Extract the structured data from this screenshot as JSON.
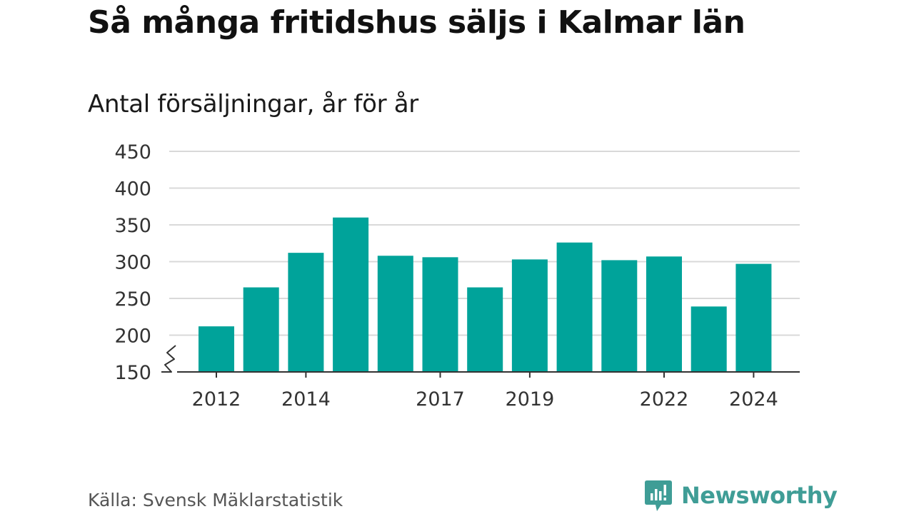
{
  "title": "Så många fritidshus säljs i Kalmar län",
  "subtitle": "Antal försäljningar, år för år",
  "source": "Källa: Svensk Mäklarstatistik",
  "brand": "Newsworthy",
  "colors": {
    "bar": "#00a39a",
    "grid": "#d9d9d9",
    "axis": "#333333",
    "brand": "#3f9d96"
  },
  "chart_data": {
    "type": "bar",
    "categories": [
      "2012",
      "2013",
      "2014",
      "2015",
      "2016",
      "2017",
      "2018",
      "2019",
      "2020",
      "2021",
      "2022",
      "2023",
      "2024"
    ],
    "values": [
      212,
      265,
      312,
      360,
      308,
      306,
      265,
      303,
      326,
      302,
      307,
      239,
      297
    ],
    "x_tick_labels": [
      "2012",
      "2014",
      "2017",
      "2019",
      "2022",
      "2024"
    ],
    "y_ticks": [
      150,
      200,
      250,
      300,
      350,
      400,
      450
    ],
    "ylim": [
      150,
      450
    ],
    "y_axis_break": true,
    "grid": true,
    "xlabel": "",
    "ylabel": ""
  }
}
